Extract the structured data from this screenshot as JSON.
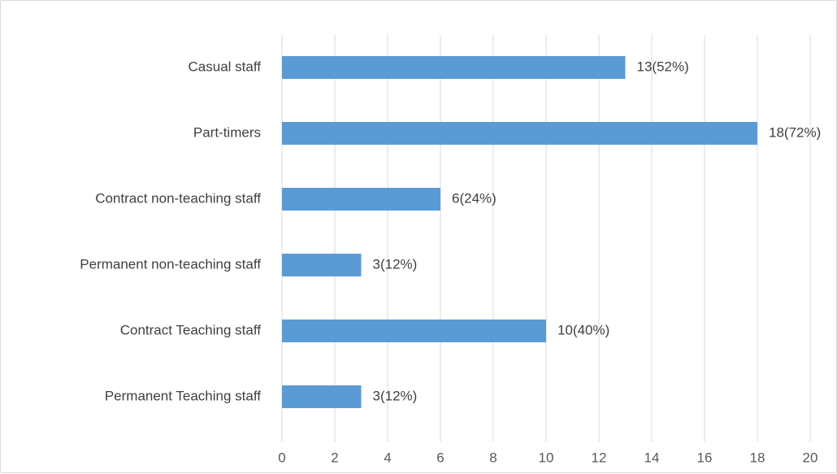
{
  "chart_data": {
    "type": "bar",
    "orientation": "horizontal",
    "categories": [
      "Casual staff",
      "Part-timers",
      "Contract non-teaching staff",
      "Permanent non-teaching staff",
      "Contract Teaching staff",
      "Permanent Teaching staff"
    ],
    "values": [
      13,
      18,
      6,
      3,
      10,
      3
    ],
    "data_labels": [
      "13(52%)",
      "18(72%)",
      "6(24%)",
      "3(12%)",
      "10(40%)",
      "3(12%)"
    ],
    "xlim": [
      0,
      20
    ],
    "x_ticks": [
      "0",
      "2",
      "4",
      "6",
      "8",
      "10",
      "12",
      "14",
      "16",
      "18",
      "20"
    ],
    "grid": "vertical",
    "legend": "none",
    "bar_color": "#5b9bd5",
    "grid_color": "#d9d9d9"
  }
}
